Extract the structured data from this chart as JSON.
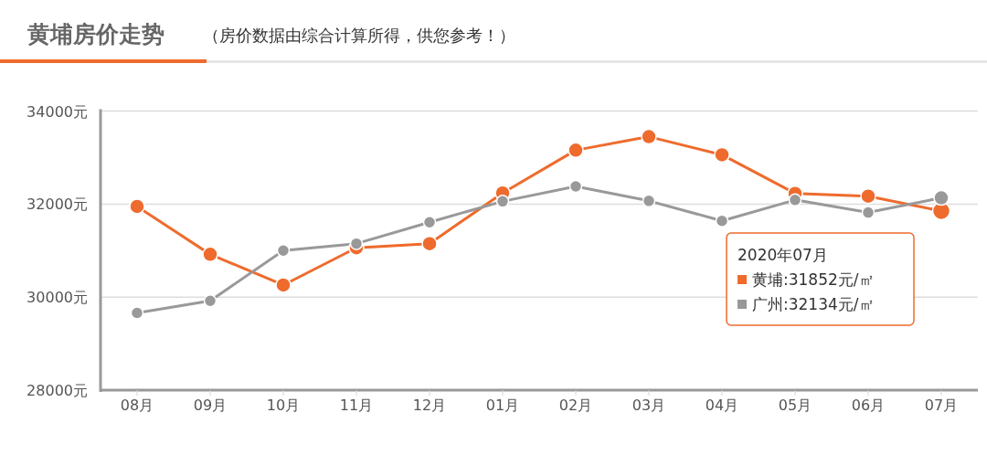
{
  "chart_data": {
    "type": "line",
    "title": "黄埔房价走势",
    "subtitle": "（房价数据由综合计算所得，供您参考！）",
    "categories": [
      "08月",
      "09月",
      "10月",
      "11月",
      "12月",
      "01月",
      "02月",
      "03月",
      "04月",
      "05月",
      "06月",
      "07月"
    ],
    "series": [
      {
        "color": "#ee6b2d",
        "values": [
          31950,
          30920,
          30260,
          31060,
          31150,
          32240,
          33160,
          33450,
          33060,
          32230,
          32170,
          31852
        ]
      },
      {
        "color": "#999999",
        "values": [
          29660,
          29920,
          31000,
          31150,
          31610,
          32060,
          32380,
          32070,
          31640,
          32090,
          31820,
          32134
        ]
      }
    ],
    "ylim": [
      28000,
      34000
    ],
    "yticks": [
      {
        "value": 28000,
        "label": "28000元"
      },
      {
        "value": 30000,
        "label": "30000元"
      },
      {
        "value": 32000,
        "label": "32000元"
      },
      {
        "value": 34000,
        "label": "34000元"
      }
    ],
    "grid": "y",
    "marker": "circle",
    "line_style": "solid",
    "annotations": [
      "2020年07月",
      "黄埔:31852元/㎡",
      "广州:32134元/㎡"
    ]
  }
}
